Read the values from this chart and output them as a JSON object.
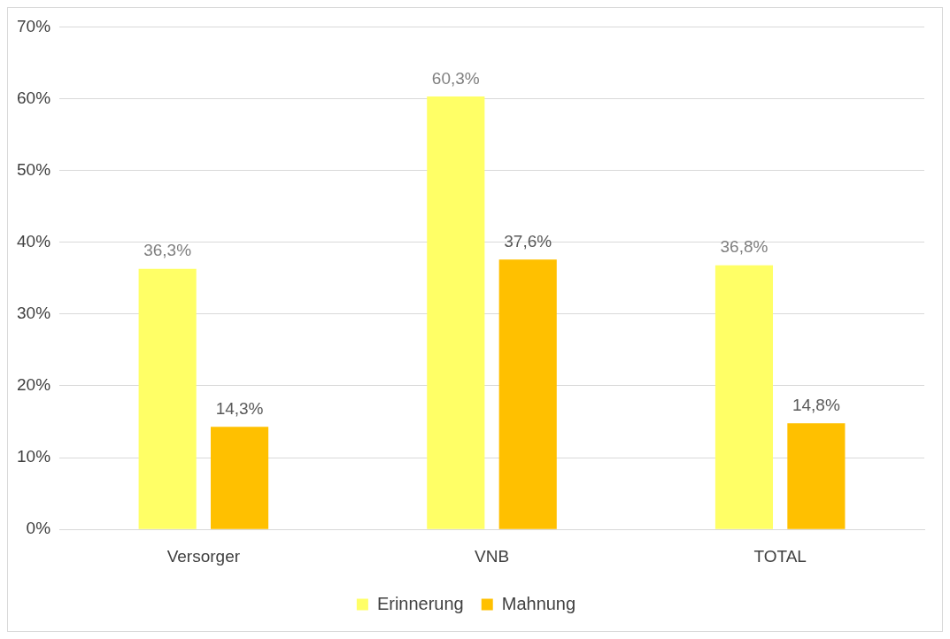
{
  "chart_data": {
    "type": "bar",
    "categories": [
      "Versorger",
      "VNB",
      "TOTAL"
    ],
    "series": [
      {
        "name": "Erinnerung",
        "color": "#ffff66",
        "values": [
          36.3,
          60.3,
          36.8
        ],
        "value_labels": [
          "36,3%",
          "60,3%",
          "36,8%"
        ]
      },
      {
        "name": "Mahnung",
        "color": "#ffc000",
        "values": [
          14.3,
          37.6,
          14.8
        ],
        "value_labels": [
          "14,3%",
          "37,6%",
          "14,8%"
        ]
      }
    ],
    "ylim": [
      0,
      70
    ],
    "yticks": [
      {
        "value": 0,
        "label": "0%"
      },
      {
        "value": 10,
        "label": "10%"
      },
      {
        "value": 20,
        "label": "20%"
      },
      {
        "value": 30,
        "label": "30%"
      },
      {
        "value": 40,
        "label": "40%"
      },
      {
        "value": 50,
        "label": "50%"
      },
      {
        "value": 60,
        "label": "60%"
      },
      {
        "value": 70,
        "label": "70%"
      }
    ],
    "grid": "y",
    "legend": "bottom"
  }
}
